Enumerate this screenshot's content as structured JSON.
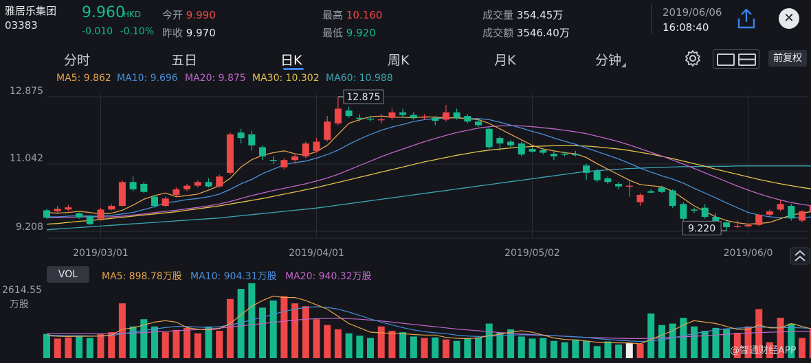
{
  "header": {
    "name": "雅居乐集团",
    "code": "03383",
    "price": "9.960",
    "currency": "HKD",
    "change": "-0.010",
    "change_pct": "-0.10%",
    "open_label": "今开",
    "open_value": "9.990",
    "prev_close_label": "昨收",
    "prev_close_value": "9.970",
    "high_label": "最高",
    "high_value": "10.160",
    "low_label": "最低",
    "low_value": "9.920",
    "volume_label": "成交量",
    "volume_value": "354.45万",
    "turnover_label": "成交额",
    "turnover_value": "3546.40万",
    "date": "2019/06/06",
    "time": "16:08:40"
  },
  "tabs": [
    "分时",
    "五日",
    "日K",
    "周K",
    "月K",
    "分钟"
  ],
  "active_tab": "日K",
  "adjust_label": "前复权",
  "ma_legend": {
    "ma5": "MA5: 9.862",
    "ma10": "MA10: 9.696",
    "ma20": "MA20: 9.875",
    "ma30": "MA30: 10.302",
    "ma60": "MA60: 10.988"
  },
  "vol_panel": {
    "button": "VOL",
    "ma5": "MA5: 898.78万股",
    "ma10": "MA10: 904.31万股",
    "ma20": "MA20: 940.32万股",
    "max_label": "2614.55",
    "unit_label": "万股"
  },
  "watermark": "@智通财经APP",
  "colors": {
    "up": "#f04848",
    "down": "#16b98e",
    "ma5": "#e7a34c",
    "ma10": "#4a90d9",
    "ma20": "#c266c9",
    "ma30": "#e6c34a",
    "ma60": "#3ba7b5",
    "background": "#14161c"
  },
  "chart_data": {
    "type": "candlestick",
    "y_axis_labels": [
      "12.875",
      "11.042",
      "9.208"
    ],
    "ylim": [
      9.208,
      12.875
    ],
    "x_tick_labels": [
      "2019/03/01",
      "2019/04/01",
      "2019/05/02",
      "2019/06/0"
    ],
    "x_tick_index": [
      5,
      25,
      45,
      65
    ],
    "annotations": {
      "max": "12.875",
      "min": "9.220"
    },
    "candles": [
      [
        9.78,
        9.58,
        9.82,
        9.55
      ],
      [
        9.75,
        9.82,
        9.9,
        9.7
      ],
      [
        9.8,
        9.86,
        9.93,
        9.75
      ],
      [
        9.7,
        9.58,
        9.72,
        9.55
      ],
      [
        9.62,
        9.4,
        9.65,
        9.38
      ],
      [
        9.55,
        9.8,
        9.85,
        9.5
      ],
      [
        9.8,
        9.9,
        9.95,
        9.78
      ],
      [
        9.9,
        10.55,
        10.6,
        9.88
      ],
      [
        10.55,
        10.35,
        10.7,
        10.3
      ],
      [
        10.5,
        10.28,
        10.55,
        10.25
      ],
      [
        10.15,
        9.9,
        10.2,
        9.85
      ],
      [
        9.9,
        10.1,
        10.15,
        9.88
      ],
      [
        10.2,
        10.35,
        10.4,
        10.15
      ],
      [
        10.35,
        10.45,
        10.5,
        10.3
      ],
      [
        10.45,
        10.55,
        10.6,
        10.4
      ],
      [
        10.55,
        10.43,
        10.65,
        10.4
      ],
      [
        10.43,
        10.7,
        10.75,
        10.4
      ],
      [
        10.8,
        11.85,
        11.9,
        10.75
      ],
      [
        11.9,
        11.75,
        12.0,
        11.6
      ],
      [
        11.85,
        11.55,
        11.95,
        11.4
      ],
      [
        11.5,
        11.25,
        11.55,
        11.15
      ],
      [
        11.15,
        11.12,
        11.25,
        11.05
      ],
      [
        10.95,
        11.15,
        11.2,
        10.9
      ],
      [
        11.15,
        11.25,
        11.3,
        11.05
      ],
      [
        11.25,
        11.6,
        11.65,
        11.2
      ],
      [
        11.4,
        11.65,
        11.75,
        11.35
      ],
      [
        11.7,
        12.2,
        12.35,
        11.65
      ],
      [
        12.15,
        12.55,
        12.875,
        12.1
      ],
      [
        12.5,
        12.35,
        12.6,
        12.3
      ],
      [
        12.3,
        12.28,
        12.4,
        12.2
      ],
      [
        12.28,
        12.26,
        12.35,
        12.2
      ],
      [
        12.25,
        12.26,
        12.4,
        12.15
      ],
      [
        12.3,
        12.45,
        12.55,
        12.25
      ],
      [
        12.45,
        12.38,
        12.55,
        12.3
      ],
      [
        12.38,
        12.3,
        12.45,
        12.25
      ],
      [
        12.3,
        12.33,
        12.4,
        12.25
      ],
      [
        12.3,
        12.22,
        12.35,
        12.1
      ],
      [
        12.25,
        12.45,
        12.65,
        12.2
      ],
      [
        12.45,
        12.3,
        12.55,
        12.25
      ],
      [
        12.35,
        12.2,
        12.4,
        12.15
      ],
      [
        12.2,
        12.1,
        12.25,
        12.05
      ],
      [
        12.0,
        11.5,
        12.05,
        11.45
      ],
      [
        11.75,
        11.6,
        11.8,
        11.4
      ],
      [
        11.65,
        11.55,
        11.7,
        11.5
      ],
      [
        11.6,
        11.3,
        11.65,
        11.25
      ],
      [
        11.45,
        11.38,
        11.5,
        11.35
      ],
      [
        11.42,
        11.35,
        11.48,
        11.3
      ],
      [
        11.32,
        11.25,
        11.4,
        11.15
      ],
      [
        11.32,
        11.3,
        11.38,
        11.25
      ],
      [
        11.32,
        11.28,
        11.4,
        11.25
      ],
      [
        11.0,
        10.8,
        11.05,
        10.6
      ],
      [
        10.85,
        10.6,
        10.9,
        10.55
      ],
      [
        10.65,
        10.55,
        10.7,
        10.5
      ],
      [
        10.5,
        10.43,
        10.55,
        10.35
      ],
      [
        10.45,
        10.45,
        10.6,
        10.15
      ],
      [
        10.0,
        10.2,
        10.25,
        9.9
      ],
      [
        10.3,
        10.26,
        10.35,
        10.25
      ],
      [
        10.4,
        10.28,
        10.45,
        10.25
      ],
      [
        10.32,
        9.9,
        10.35,
        9.85
      ],
      [
        9.95,
        9.55,
        10.0,
        9.5
      ],
      [
        9.8,
        9.77,
        9.85,
        9.7
      ],
      [
        9.85,
        9.6,
        9.95,
        9.55
      ],
      [
        9.6,
        9.45,
        9.7,
        9.42
      ],
      [
        9.45,
        9.32,
        9.48,
        9.22
      ],
      [
        9.34,
        9.35,
        9.5,
        9.3
      ],
      [
        9.34,
        9.38,
        9.42,
        9.32
      ],
      [
        9.38,
        9.66,
        9.68,
        9.35
      ],
      [
        9.66,
        9.75,
        9.8,
        9.6
      ],
      [
        9.8,
        9.95,
        10.05,
        9.75
      ],
      [
        9.9,
        9.56,
        9.95,
        9.5
      ],
      [
        9.5,
        9.75,
        9.78,
        9.45
      ],
      [
        9.75,
        9.92,
        10.0,
        9.72
      ],
      [
        9.97,
        9.96,
        10.02,
        9.92
      ],
      [
        9.99,
        9.96,
        10.16,
        9.92
      ]
    ],
    "ma5": [
      9.72,
      9.7,
      9.72,
      9.75,
      9.72,
      9.68,
      9.7,
      9.78,
      9.92,
      10.08,
      10.18,
      10.25,
      10.15,
      10.18,
      10.22,
      10.33,
      10.45,
      10.65,
      10.96,
      11.16,
      11.28,
      11.35,
      11.4,
      11.32,
      11.28,
      11.38,
      11.55,
      11.85,
      12.15,
      12.25,
      12.33,
      12.35,
      12.32,
      12.32,
      12.3,
      12.33,
      12.32,
      12.3,
      12.3,
      12.28,
      12.25,
      12.15,
      12.0,
      11.85,
      11.7,
      11.55,
      11.45,
      11.4,
      11.35,
      11.32,
      11.22,
      11.05,
      10.9,
      10.75,
      10.6,
      10.48,
      10.45,
      10.42,
      10.3,
      10.1,
      9.9,
      9.75,
      9.6,
      9.5,
      9.44,
      9.4,
      9.42,
      9.45,
      9.55,
      9.65,
      9.7,
      9.75,
      9.82,
      9.86
    ],
    "ma10": [
      9.6,
      9.6,
      9.62,
      9.63,
      9.62,
      9.62,
      9.64,
      9.68,
      9.72,
      9.8,
      9.88,
      9.98,
      10.02,
      10.07,
      10.1,
      10.15,
      10.22,
      10.35,
      10.5,
      10.62,
      10.78,
      10.9,
      11.02,
      11.08,
      11.12,
      11.2,
      11.3,
      11.42,
      11.58,
      11.72,
      11.85,
      11.96,
      12.05,
      12.12,
      12.2,
      12.25,
      12.28,
      12.3,
      12.3,
      12.28,
      12.28,
      12.25,
      12.18,
      12.1,
      12.02,
      11.93,
      11.85,
      11.75,
      11.66,
      11.58,
      11.48,
      11.38,
      11.28,
      11.18,
      11.06,
      10.93,
      10.82,
      10.72,
      10.63,
      10.52,
      10.38,
      10.25,
      10.12,
      9.98,
      9.85,
      9.72,
      9.65,
      9.6,
      9.58,
      9.57,
      9.58,
      9.6,
      9.65,
      9.7
    ],
    "ma20": [
      9.58,
      9.58,
      9.58,
      9.6,
      9.6,
      9.6,
      9.6,
      9.62,
      9.65,
      9.68,
      9.72,
      9.75,
      9.78,
      9.82,
      9.86,
      9.9,
      9.95,
      10.02,
      10.1,
      10.18,
      10.25,
      10.32,
      10.38,
      10.44,
      10.5,
      10.58,
      10.66,
      10.76,
      10.88,
      11.0,
      11.12,
      11.24,
      11.35,
      11.45,
      11.55,
      11.65,
      11.74,
      11.82,
      11.9,
      11.96,
      12.02,
      12.06,
      12.08,
      12.09,
      12.08,
      12.06,
      12.03,
      12.0,
      11.96,
      11.92,
      11.87,
      11.8,
      11.73,
      11.65,
      11.56,
      11.46,
      11.36,
      11.26,
      11.15,
      11.04,
      10.92,
      10.8,
      10.68,
      10.56,
      10.44,
      10.33,
      10.23,
      10.14,
      10.06,
      9.99,
      9.94,
      9.9,
      9.88,
      9.87
    ],
    "ma30": [
      9.4,
      9.42,
      9.45,
      9.48,
      9.5,
      9.53,
      9.56,
      9.59,
      9.62,
      9.65,
      9.68,
      9.71,
      9.74,
      9.78,
      9.82,
      9.86,
      9.9,
      9.95,
      10.0,
      10.05,
      10.1,
      10.16,
      10.22,
      10.28,
      10.34,
      10.4,
      10.47,
      10.54,
      10.61,
      10.68,
      10.75,
      10.82,
      10.89,
      10.96,
      11.03,
      11.1,
      11.16,
      11.22,
      11.28,
      11.33,
      11.38,
      11.42,
      11.45,
      11.48,
      11.5,
      11.52,
      11.53,
      11.54,
      11.54,
      11.54,
      11.53,
      11.51,
      11.48,
      11.45,
      11.41,
      11.36,
      11.31,
      11.25,
      11.19,
      11.12,
      11.05,
      10.98,
      10.9,
      10.83,
      10.76,
      10.69,
      10.62,
      10.56,
      10.5,
      10.45,
      10.4,
      10.36,
      10.33,
      10.3
    ],
    "ma60": [
      9.25,
      9.27,
      9.29,
      9.31,
      9.33,
      9.35,
      9.37,
      9.39,
      9.41,
      9.43,
      9.45,
      9.47,
      9.49,
      9.51,
      9.53,
      9.55,
      9.57,
      9.6,
      9.63,
      9.66,
      9.69,
      9.72,
      9.75,
      9.78,
      9.81,
      9.84,
      9.88,
      9.92,
      9.96,
      10.0,
      10.04,
      10.08,
      10.12,
      10.16,
      10.2,
      10.24,
      10.28,
      10.32,
      10.36,
      10.4,
      10.44,
      10.48,
      10.52,
      10.56,
      10.6,
      10.64,
      10.68,
      10.72,
      10.76,
      10.8,
      10.84,
      10.86,
      10.88,
      10.9,
      10.92,
      10.93,
      10.94,
      10.95,
      10.96,
      10.97,
      10.97,
      10.98,
      10.98,
      10.98,
      10.99,
      10.99,
      10.99,
      10.99,
      10.99,
      10.99,
      10.99,
      10.99,
      10.99,
      10.99
    ],
    "volume": [
      840,
      680,
      720,
      760,
      700,
      830,
      900,
      1900,
      1100,
      1350,
      1100,
      900,
      980,
      1050,
      860,
      1100,
      950,
      2050,
      2400,
      2600,
      1750,
      2000,
      2150,
      1900,
      1800,
      1350,
      1150,
      1000,
      860,
      780,
      700,
      1100,
      950,
      900,
      750,
      700,
      720,
      650,
      600,
      700,
      720,
      1200,
      880,
      1000,
      750,
      680,
      700,
      600,
      550,
      650,
      600,
      420,
      580,
      470,
      520,
      500,
      1550,
      1150,
      1200,
      1400,
      1100,
      950,
      1050,
      1000,
      880,
      1100,
      1700,
      550,
      1400,
      1200,
      700,
      1000,
      780,
      354
    ],
    "volume_ma5": [
      780,
      760,
      750,
      760,
      760,
      770,
      800,
      1000,
      1050,
      1150,
      1250,
      1300,
      1250,
      1060,
      1000,
      980,
      1020,
      1200,
      1500,
      1800,
      2000,
      2150,
      2100,
      2100,
      2000,
      1850,
      1700,
      1450,
      1200,
      1050,
      900,
      880,
      860,
      850,
      820,
      800,
      800,
      720,
      690,
      680,
      700,
      780,
      830,
      900,
      950,
      900,
      800,
      700,
      650,
      630,
      600,
      550,
      540,
      530,
      530,
      500,
      650,
      800,
      950,
      1150,
      1300,
      1250,
      1200,
      1100,
      1000,
      1000,
      1150,
      1050,
      1050,
      1200,
      1100,
      1000,
      950,
      900
    ],
    "volume_ma10": [
      800,
      790,
      780,
      780,
      770,
      770,
      780,
      850,
      900,
      960,
      1010,
      1060,
      1100,
      1100,
      1080,
      1070,
      1090,
      1150,
      1230,
      1330,
      1420,
      1520,
      1620,
      1700,
      1760,
      1780,
      1760,
      1700,
      1600,
      1480,
      1360,
      1250,
      1150,
      1060,
      980,
      920,
      880,
      850,
      800,
      770,
      750,
      760,
      780,
      800,
      810,
      800,
      790,
      780,
      760,
      740,
      720,
      680,
      650,
      620,
      600,
      580,
      600,
      640,
      700,
      780,
      850,
      920,
      980,
      1020,
      1040,
      1060,
      1080,
      1070,
      1060,
      1060,
      1050,
      1030,
      1000,
      904
    ],
    "volume_ma20": [
      850,
      850,
      850,
      850,
      850,
      850,
      850,
      860,
      870,
      890,
      910,
      930,
      950,
      970,
      990,
      1010,
      1040,
      1080,
      1120,
      1160,
      1200,
      1240,
      1280,
      1320,
      1350,
      1370,
      1380,
      1380,
      1370,
      1350,
      1320,
      1290,
      1250,
      1210,
      1170,
      1130,
      1090,
      1050,
      1010,
      980,
      950,
      920,
      890,
      860,
      840,
      820,
      800,
      780,
      760,
      740,
      720,
      710,
      700,
      690,
      680,
      680,
      690,
      700,
      720,
      740,
      760,
      780,
      800,
      830,
      850,
      870,
      890,
      900,
      910,
      920,
      930,
      935,
      940,
      940
    ]
  }
}
